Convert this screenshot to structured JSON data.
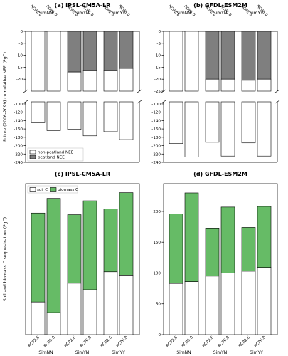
{
  "chart_data": [
    {
      "type": "bar",
      "title": "(a) IPSL-CM5A-LR",
      "ylabel": "Future (2006-2099) cumulative NEE (PgC)",
      "groups": [
        "SimNN",
        "SimYN",
        "SimYY"
      ],
      "scenarios": [
        "RCP2.6",
        "RCP6.0"
      ],
      "broken_axis": true,
      "ylim_top": [
        -25,
        0
      ],
      "yticks_top": [
        0,
        -5,
        -10,
        -15,
        -20
      ],
      "ylim_bottom": [
        -240,
        -95
      ],
      "yticks_bottom": [
        -100,
        -120,
        -140,
        -160,
        -180,
        -200,
        -220,
        -240
      ],
      "series": [
        {
          "name": "non-peatland NEE",
          "values": [
            -145,
            -164,
            -144,
            -160,
            -150,
            -170
          ]
        },
        {
          "name": "peatland NEE",
          "values": [
            0,
            0,
            -17,
            -16.5,
            -16.5,
            -15.5
          ]
        }
      ],
      "legend": "bottom-left"
    },
    {
      "type": "bar",
      "title": "(b) GFDL-ESM2M",
      "groups": [
        "SimNN",
        "SimYN",
        "SimYY"
      ],
      "scenarios": [
        "RCP2.6",
        "RCP6.0"
      ],
      "broken_axis": true,
      "ylim_top": [
        -25,
        0
      ],
      "yticks_top": [
        0,
        -5,
        -10,
        -15,
        -20,
        -25
      ],
      "ylim_bottom": [
        -240,
        -95
      ],
      "yticks_bottom": [
        -100,
        -120,
        -140,
        -160,
        -180,
        -200,
        -220,
        -240
      ],
      "series": [
        {
          "name": "non-peatland NEE",
          "values": [
            -195,
            -227,
            -172,
            -205,
            -173,
            -205
          ]
        },
        {
          "name": "peatland NEE",
          "values": [
            0,
            0,
            -20,
            -20,
            -20.5,
            -20
          ]
        }
      ]
    },
    {
      "type": "bar",
      "title": "(c) IPSL-CM5A-LR",
      "ylabel": "Soil and biomass C sequestration (PgC)",
      "groups": [
        "SimNN",
        "SimYN",
        "SimYY"
      ],
      "scenarios": [
        "RCP2.6",
        "RCP6.0"
      ],
      "ylim": [
        0,
        185
      ],
      "yticks": [],
      "series": [
        {
          "name": "soil C",
          "values": [
            40,
            27,
            63,
            55,
            77,
            73
          ]
        },
        {
          "name": "biomass C",
          "values": [
            109,
            140,
            84,
            109,
            77,
            101
          ]
        }
      ],
      "legend": "top-left"
    },
    {
      "type": "bar",
      "title": "(d) GFDL-ESM2M",
      "groups": [
        "SimNN",
        "SimYN",
        "SimYY"
      ],
      "scenarios": [
        "RCP2.6",
        "RCP6.0"
      ],
      "ylim": [
        0,
        245
      ],
      "yticks": [
        0,
        50,
        100,
        150,
        200
      ],
      "series": [
        {
          "name": "soil C",
          "values": [
            83,
            86,
            95,
            100,
            103,
            109
          ]
        },
        {
          "name": "biomass C",
          "values": [
            113,
            144,
            78,
            107,
            71,
            99
          ]
        }
      ]
    }
  ]
}
